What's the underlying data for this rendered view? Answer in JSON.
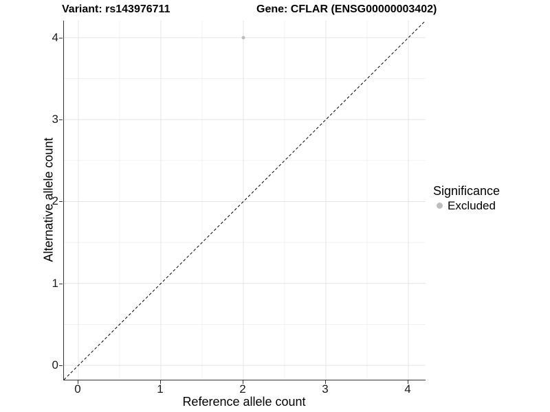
{
  "chart_data": {
    "type": "scatter",
    "title_left": "Variant: rs143976711",
    "title_right": "Gene: CFLAR (ENSG00000003402)",
    "xlabel": "Reference allele count",
    "ylabel": "Alternative allele count",
    "xlim": [
      -0.175,
      4.208
    ],
    "ylim": [
      -0.175,
      4.208
    ],
    "xticks": [
      0,
      1,
      2,
      3,
      4
    ],
    "yticks": [
      0,
      1,
      2,
      3,
      4
    ],
    "xticks_minor": [
      0.5,
      1.5,
      2.5,
      3.5
    ],
    "yticks_minor": [
      0.5,
      1.5,
      2.5,
      3.5
    ],
    "grid": true,
    "points": [
      {
        "x": 2,
        "y": 4,
        "significance": "Excluded"
      }
    ],
    "reference_line": {
      "type": "identity",
      "style": "dashed",
      "color": "#000000"
    },
    "legend": {
      "position": "right",
      "title": "Significance",
      "items": [
        {
          "label": "Excluded",
          "color": "#bdbdbd"
        }
      ]
    },
    "colors": {
      "point": "#bdbdbd",
      "grid_major": "#e4e4e4",
      "grid_minor": "#f1f1f1",
      "axis_line": "#333333",
      "tick_text": "#1a1a1a"
    }
  }
}
